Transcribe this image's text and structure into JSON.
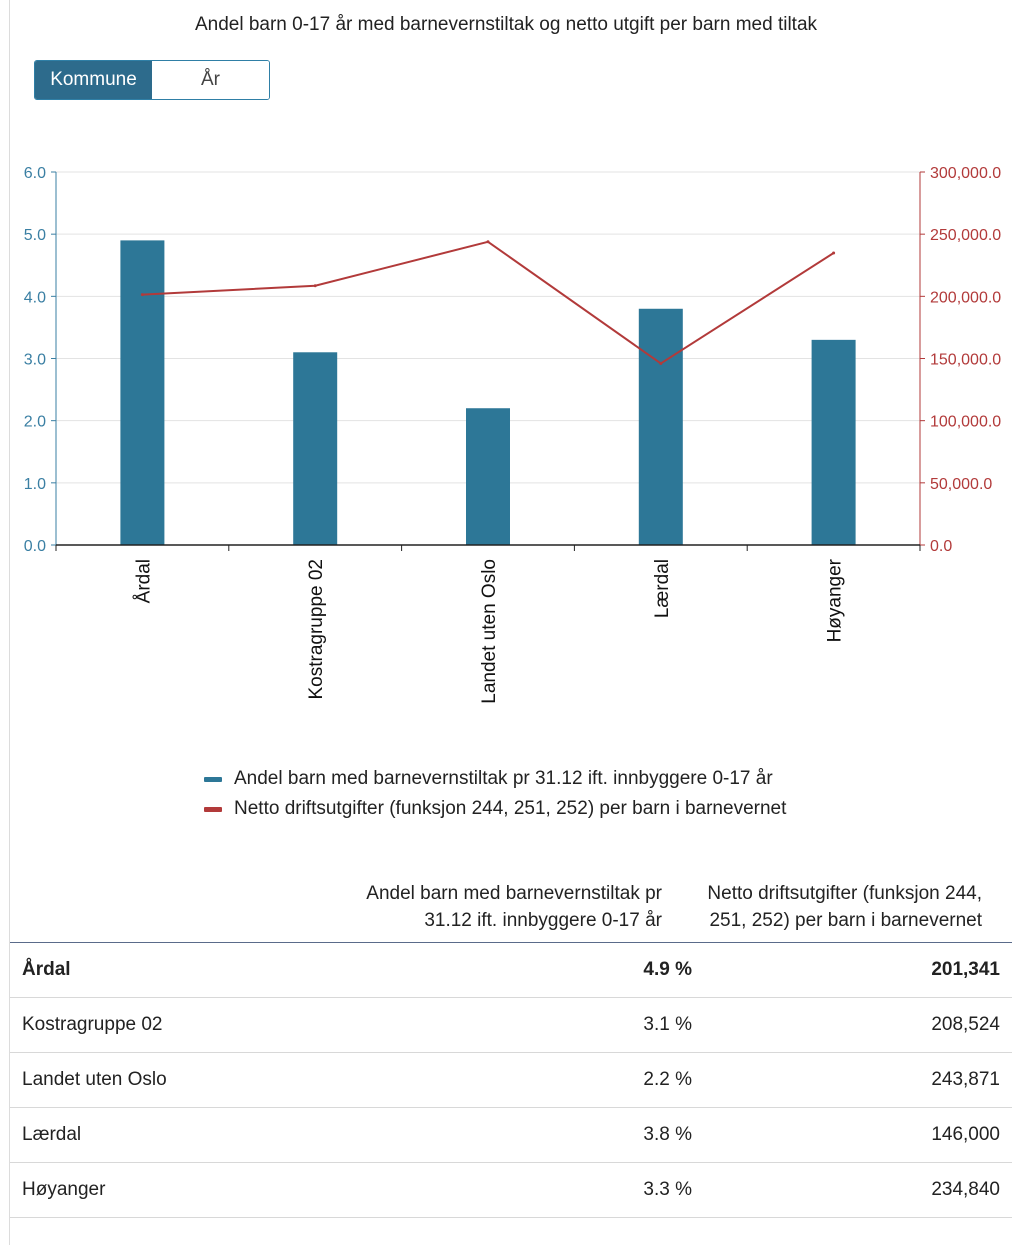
{
  "chart_data": {
    "type": "bar",
    "title": "Andel barn 0-17 år med barnevernstiltak og netto utgift per barn med tiltak",
    "categories": [
      "Årdal",
      "Kostragruppe 02",
      "Landet uten Oslo",
      "Lærdal",
      "Høyanger"
    ],
    "series": [
      {
        "name": "Andel barn med barnevernstiltak pr 31.12 ift. innbyggere 0-17 år",
        "type": "bar",
        "axis": "left",
        "values": [
          4.9,
          3.1,
          2.2,
          3.8,
          3.3
        ],
        "color": "#2d7797"
      },
      {
        "name": "Netto driftsutgifter (funksjon 244, 251, 252) per barn i barnevernet",
        "type": "line",
        "axis": "right",
        "values": [
          201341,
          208524,
          243871,
          146000,
          234840
        ],
        "color": "#b23a3a"
      }
    ],
    "y_left": {
      "range": [
        0,
        6
      ],
      "ticks": [
        "0.0",
        "1.0",
        "2.0",
        "3.0",
        "4.0",
        "5.0",
        "6.0"
      ],
      "color": "#3a7fa3"
    },
    "y_right": {
      "range": [
        0,
        300000
      ],
      "ticks": [
        "0.0",
        "50,000.0",
        "100,000.0",
        "150,000.0",
        "200,000.0",
        "250,000.0",
        "300,000.0"
      ],
      "color": "#b23a3a"
    },
    "grid": true,
    "legend_position": "bottom"
  },
  "toggle": {
    "options": [
      "Kommune",
      "År"
    ],
    "selected": "Kommune"
  },
  "table": {
    "headers": [
      "",
      "Andel barn med barnevernstiltak pr 31.12 ift. innbyggere 0-17 år",
      "Netto driftsutgifter (funksjon 244, 251, 252) per barn i barnevernet"
    ],
    "rows": [
      {
        "name": "Årdal",
        "v1": "4.9 %",
        "v2": "201,341",
        "bold": true
      },
      {
        "name": "Kostragruppe 02",
        "v1": "3.1 %",
        "v2": "208,524",
        "bold": false
      },
      {
        "name": "Landet uten Oslo",
        "v1": "2.2 %",
        "v2": "243,871",
        "bold": false
      },
      {
        "name": "Lærdal",
        "v1": "3.8 %",
        "v2": "146,000",
        "bold": false
      },
      {
        "name": "Høyanger",
        "v1": "3.3 %",
        "v2": "234,840",
        "bold": false
      }
    ]
  }
}
